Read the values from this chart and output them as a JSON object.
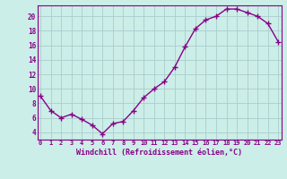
{
  "x": [
    0,
    1,
    2,
    3,
    4,
    5,
    6,
    7,
    8,
    9,
    10,
    11,
    12,
    13,
    14,
    15,
    16,
    17,
    18,
    19,
    20,
    21,
    22,
    23
  ],
  "y": [
    9.0,
    7.0,
    6.0,
    6.5,
    5.8,
    5.0,
    3.8,
    5.2,
    5.5,
    7.0,
    8.8,
    10.0,
    11.0,
    13.0,
    15.8,
    18.3,
    19.5,
    20.0,
    21.0,
    21.0,
    20.5,
    20.0,
    19.0,
    16.5
  ],
  "line_color": "#880088",
  "marker": "+",
  "marker_size": 4,
  "bg_color": "#cceee8",
  "grid_color": "#aacccc",
  "xlabel": "Windchill (Refroidissement éolien,°C)",
  "xlabel_color": "#880088",
  "tick_color": "#880088",
  "ylim": [
    3,
    21.5
  ],
  "xlim": [
    -0.3,
    23.3
  ],
  "yticks": [
    4,
    6,
    8,
    10,
    12,
    14,
    16,
    18,
    20
  ],
  "xtick_labels": [
    "0",
    "1",
    "2",
    "3",
    "4",
    "5",
    "6",
    "7",
    "8",
    "9",
    "10",
    "11",
    "12",
    "13",
    "14",
    "15",
    "16",
    "17",
    "18",
    "19",
    "20",
    "21",
    "22",
    "23"
  ],
  "font_family": "monospace",
  "tick_fontsize": 5.0,
  "xlabel_fontsize": 6.0,
  "ylabel_fontsize": 5.5,
  "linewidth": 1.0,
  "marker_linewidth": 1.0
}
